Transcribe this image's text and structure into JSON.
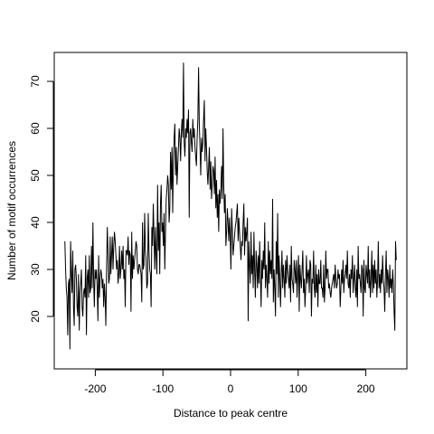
{
  "chart_data": {
    "type": "line",
    "title": "",
    "xlabel": "Distance to peak centre",
    "ylabel": "Number of motif occurrences",
    "xlim": [
      -250,
      250
    ],
    "ylim": [
      10,
      75
    ],
    "xticks": [
      -200,
      -100,
      0,
      100,
      200
    ],
    "yticks": [
      20,
      30,
      40,
      50,
      60,
      70
    ],
    "grid": false,
    "legend": "none",
    "line_color": "#000000",
    "series": [
      {
        "values": [
          36,
          30,
          26,
          24,
          16,
          27,
          28,
          13,
          36,
          29,
          25,
          34,
          22,
          18,
          30,
          31,
          28,
          22,
          20,
          29,
          17,
          25,
          27,
          30,
          22,
          20,
          25,
          26,
          24,
          33,
          16,
          28,
          30,
          24,
          33,
          25,
          26,
          35,
          26,
          40,
          28,
          22,
          30,
          28,
          30,
          26,
          19,
          33,
          24,
          28,
          30,
          29,
          26,
          28,
          22,
          27,
          24,
          18,
          30,
          39,
          34,
          27,
          28,
          37,
          29,
          33,
          37,
          30,
          35,
          38,
          36,
          33,
          30,
          32,
          27,
          29,
          35,
          28,
          30,
          34,
          30,
          35,
          28,
          30,
          22,
          34,
          34,
          33,
          37,
          31,
          34,
          33,
          21,
          38,
          28,
          33,
          30,
          32,
          34,
          36,
          35,
          30,
          29,
          31,
          31,
          30,
          29,
          23,
          40,
          30,
          31,
          42,
          34,
          32,
          26,
          27,
          42,
          34,
          30,
          29,
          22,
          39,
          35,
          44,
          37,
          30,
          39,
          33,
          29,
          48,
          34,
          40,
          29,
          44,
          48,
          38,
          40,
          35,
          42,
          30,
          38,
          45,
          47,
          50,
          48,
          40,
          43,
          55,
          47,
          56,
          42,
          53,
          58,
          61,
          50,
          56,
          48,
          52,
          56,
          60,
          58,
          53,
          59,
          62,
          58,
          74,
          57,
          54,
          60,
          58,
          62,
          59,
          64,
          41,
          59,
          60,
          57,
          55,
          62,
          58,
          60,
          56,
          54,
          52,
          58,
          62,
          73,
          61,
          56,
          50,
          58,
          55,
          57,
          62,
          66,
          53,
          60,
          56,
          51,
          48,
          52,
          56,
          47,
          53,
          45,
          48,
          52,
          51,
          46,
          54,
          43,
          49,
          41,
          46,
          38,
          47,
          44,
          47,
          52,
          45,
          60,
          48,
          42,
          46,
          35,
          38,
          43,
          40,
          36,
          41,
          37,
          30,
          43,
          38,
          33,
          35,
          37,
          39,
          40,
          42,
          44,
          36,
          41,
          38,
          35,
          32,
          36,
          35,
          40,
          44,
          33,
          39,
          36,
          38,
          41,
          19,
          36,
          31,
          27,
          38,
          29,
          33,
          26,
          38,
          30,
          24,
          34,
          31,
          26,
          33,
          27,
          36,
          29,
          22,
          32,
          28,
          34,
          30,
          40,
          26,
          31,
          28,
          24,
          36,
          27,
          34,
          29,
          32,
          28,
          45,
          23,
          30,
          26,
          20,
          36,
          29,
          42,
          24,
          33,
          28,
          22,
          29,
          34,
          26,
          31,
          28,
          24,
          32,
          27,
          33,
          30,
          28,
          26,
          31,
          23,
          35,
          28,
          27,
          25,
          32,
          30,
          27,
          32,
          24,
          29,
          33,
          21,
          31,
          28,
          26,
          30,
          34,
          25,
          28,
          22,
          26,
          33,
          27,
          29,
          30,
          25,
          32,
          31,
          20,
          28,
          27,
          34,
          26,
          24,
          31,
          25,
          29,
          22,
          30,
          27,
          27,
          32,
          26,
          26,
          24,
          31,
          23,
          26,
          34,
          28,
          30,
          30,
          26,
          27,
          25,
          24,
          26,
          27,
          28,
          29,
          26,
          31,
          28,
          26,
          27,
          30,
          28,
          29,
          22,
          26,
          30,
          27,
          32,
          25,
          28,
          29,
          31,
          28,
          34,
          27,
          26,
          29,
          24,
          30,
          28,
          33,
          25,
          28,
          31,
          26,
          24,
          30,
          22,
          35,
          28,
          29,
          27,
          25,
          31,
          30,
          20,
          32,
          26,
          25,
          31,
          29,
          27,
          35,
          26,
          30,
          24,
          28,
          34,
          25,
          31,
          26,
          32,
          27,
          30,
          24,
          28,
          36,
          26,
          29,
          25,
          30,
          27,
          33,
          28,
          26,
          21,
          29,
          34,
          25,
          30,
          28,
          24,
          31,
          26,
          28,
          25,
          30,
          27,
          21,
          17,
          36,
          32
        ]
      }
    ]
  }
}
